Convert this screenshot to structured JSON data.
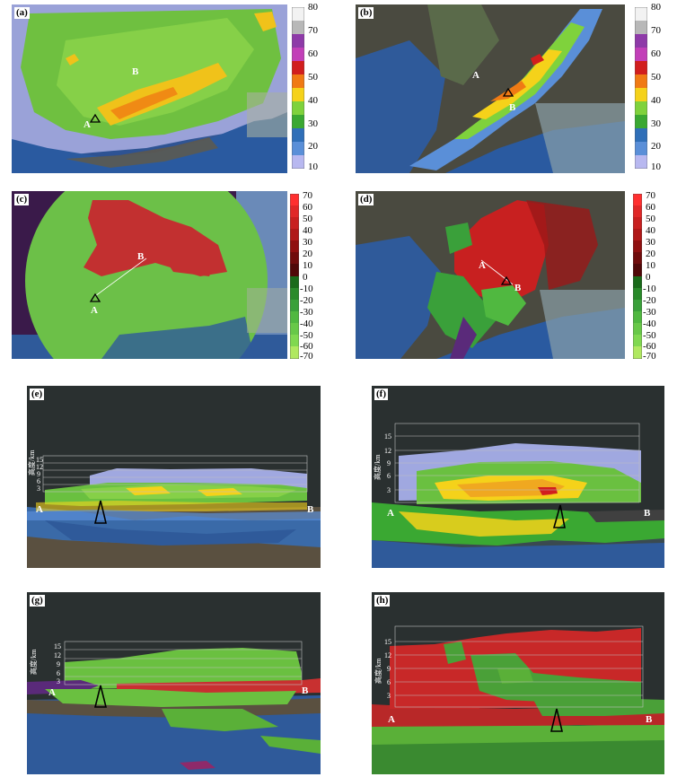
{
  "panels": [
    {
      "id": "a",
      "label": "(a)",
      "point_a": "A",
      "point_b": "B"
    },
    {
      "id": "b",
      "label": "(b)",
      "point_a": "A",
      "point_b": "B"
    },
    {
      "id": "c",
      "label": "(c)",
      "point_a": "A",
      "point_b": "B"
    },
    {
      "id": "d",
      "label": "(d)",
      "point_a": "A",
      "point_b": "B"
    },
    {
      "id": "e",
      "label": "(e)",
      "point_a": "A",
      "point_b": "B",
      "height_axis_label": "高度/km",
      "height_ticks": [
        "15",
        "12",
        "9",
        "6",
        "3"
      ]
    },
    {
      "id": "f",
      "label": "(f)",
      "point_a": "A",
      "point_b": "B",
      "height_axis_label": "高度/km",
      "height_ticks": [
        "15",
        "12",
        "9",
        "6",
        "3"
      ]
    },
    {
      "id": "g",
      "label": "(g)",
      "point_a": "A",
      "point_b": "B",
      "height_axis_label": "高度/km",
      "height_ticks": [
        "15",
        "12",
        "9",
        "6",
        "3"
      ]
    },
    {
      "id": "h",
      "label": "(h)",
      "point_a": "A",
      "point_b": "B",
      "height_axis_label": "高度/km",
      "height_ticks": [
        "15",
        "12",
        "9",
        "6",
        "3"
      ]
    }
  ],
  "reflectivity_colorbar": {
    "ticks": [
      "80",
      "70",
      "60",
      "50",
      "40",
      "30",
      "20",
      "10"
    ],
    "colors": [
      "#f2f2f2",
      "#b8b8b8",
      "#8e3aa8",
      "#c23fb8",
      "#d11e1e",
      "#f07a14",
      "#f5d21a",
      "#7fd23c",
      "#3aa832",
      "#2f6fb8",
      "#5a8fd8",
      "#b8b8f0"
    ]
  },
  "velocity_colorbar": {
    "ticks": [
      "70",
      "60",
      "50",
      "40",
      "30",
      "20",
      "10",
      "0",
      "-10",
      "-20",
      "-30",
      "-40",
      "-50",
      "-60",
      "-70"
    ],
    "colors": [
      "#ff3030",
      "#e02828",
      "#c82020",
      "#b01818",
      "#901010",
      "#700c0c",
      "#500808",
      "#1a6a1a",
      "#2a8a2a",
      "#3aa03a",
      "#50b840",
      "#68c848",
      "#80d850",
      "#98e058",
      "#b0e860"
    ]
  }
}
